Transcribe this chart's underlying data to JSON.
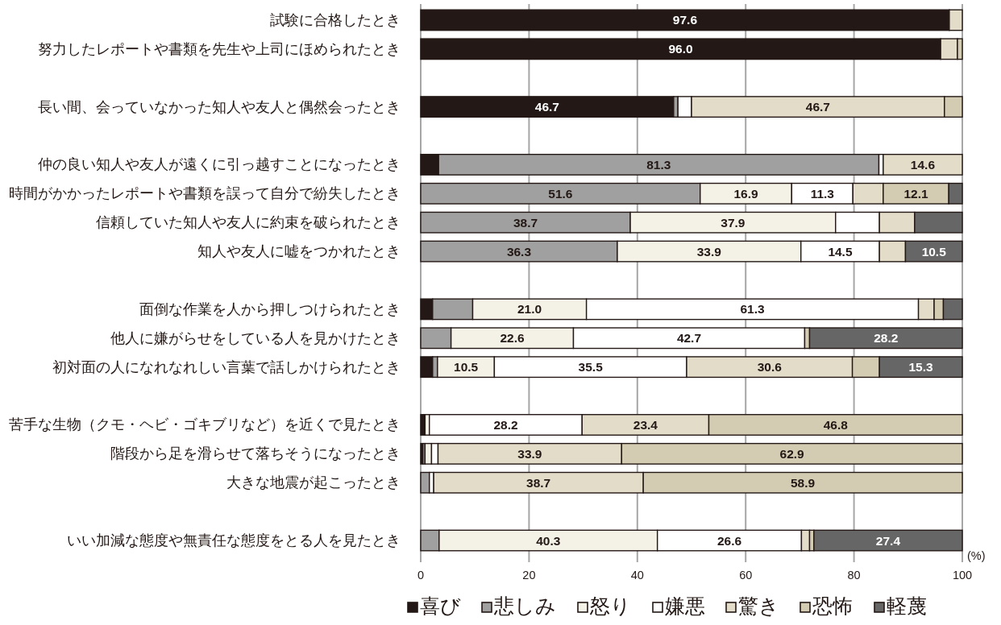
{
  "chart_data": {
    "type": "bar",
    "orientation": "horizontal",
    "stacked": true,
    "categories": [
      "試験に合格したとき",
      "努力したレポートや書類を先生や上司にほめられたとき",
      null,
      "長い間、会っていなかった知人や友人と偶然会ったとき",
      null,
      "仲の良い知人や友人が遠くに引っ越すことになったとき",
      "時間がかかったレポートや書類を誤って自分で紛失したとき",
      "信頼していた知人や友人に約束を破られたとき",
      "知人や友人に嘘をつかれたとき",
      null,
      "面倒な作業を人から押しつけられたとき",
      "他人に嫌がらせをしている人を見かけたとき",
      "初対面の人になれなれしい言葉で話しかけられたとき",
      null,
      "苦手な生物（クモ・ヘビ・ゴキブリなど）を近くで見たとき",
      "階段から足を滑らせて落ちそうになったとき",
      "大きな地震が起こったとき",
      null,
      "いい加減な態度や無責任な態度をとる人を見たとき"
    ],
    "series": [
      {
        "name": "喜び",
        "color": "#231815",
        "values": [
          97.6,
          96.0,
          null,
          46.7,
          null,
          3.3,
          null,
          null,
          null,
          null,
          2.2,
          null,
          2.2,
          null,
          0.8,
          0.4,
          null,
          null,
          null
        ],
        "value_labels": [
          "97.6",
          "96.0",
          null,
          "46.7",
          null,
          null,
          null,
          null,
          null,
          null,
          null,
          null,
          null,
          null,
          null,
          null,
          null,
          null,
          null
        ]
      },
      {
        "name": "悲しみ",
        "color": "#a0a0a0",
        "values": [
          null,
          null,
          null,
          0.8,
          null,
          81.3,
          51.6,
          38.7,
          36.3,
          null,
          7.4,
          5.6,
          0.9,
          null,
          null,
          0.4,
          1.6,
          null,
          3.4
        ],
        "value_labels": [
          null,
          null,
          null,
          null,
          null,
          "81.3",
          "51.6",
          "38.7",
          "36.3",
          null,
          null,
          null,
          null,
          null,
          null,
          null,
          null,
          null,
          null
        ]
      },
      {
        "name": "怒り",
        "color": "#f4f1e6",
        "values": [
          null,
          null,
          null,
          null,
          null,
          null,
          16.9,
          37.9,
          33.9,
          null,
          21.0,
          22.6,
          10.5,
          null,
          0.8,
          1.2,
          null,
          null,
          40.3
        ],
        "value_labels": [
          null,
          null,
          null,
          null,
          null,
          null,
          "16.9",
          "37.9",
          "33.9",
          null,
          "21.0",
          "22.6",
          "10.5",
          null,
          null,
          null,
          null,
          null,
          "40.3"
        ]
      },
      {
        "name": "嫌悪",
        "color": "#ffffff",
        "values": [
          null,
          null,
          null,
          2.5,
          null,
          0.8,
          11.3,
          8.1,
          14.5,
          null,
          61.3,
          42.7,
          35.5,
          null,
          28.2,
          1.2,
          0.8,
          null,
          26.6
        ],
        "value_labels": [
          null,
          null,
          null,
          null,
          null,
          null,
          "11.3",
          null,
          "14.5",
          null,
          "61.3",
          "42.7",
          "35.5",
          null,
          "28.2",
          null,
          null,
          null,
          "26.6"
        ]
      },
      {
        "name": "驚き",
        "color": "#e3dcc8",
        "values": [
          2.4,
          3.1,
          null,
          46.7,
          null,
          14.6,
          5.6,
          6.5,
          4.8,
          null,
          2.9,
          null,
          30.6,
          null,
          23.4,
          33.9,
          38.7,
          null,
          1.5
        ],
        "value_labels": [
          null,
          null,
          null,
          "46.7",
          null,
          "14.6",
          null,
          null,
          null,
          null,
          null,
          null,
          "30.6",
          null,
          "23.4",
          "33.9",
          "38.7",
          null,
          null
        ]
      },
      {
        "name": "恐怖",
        "color": "#d3ccb2",
        "values": [
          null,
          0.9,
          null,
          3.3,
          null,
          null,
          12.1,
          null,
          null,
          null,
          1.7,
          0.9,
          5.0,
          null,
          46.8,
          62.9,
          58.9,
          null,
          0.8
        ],
        "value_labels": [
          null,
          null,
          null,
          null,
          null,
          null,
          "12.1",
          null,
          null,
          null,
          null,
          null,
          null,
          null,
          "46.8",
          "62.9",
          "58.9",
          null,
          null
        ]
      },
      {
        "name": "軽蔑",
        "color": "#666666",
        "values": [
          null,
          null,
          null,
          null,
          null,
          null,
          2.5,
          8.8,
          10.5,
          null,
          3.5,
          28.2,
          15.3,
          null,
          null,
          null,
          null,
          null,
          27.4
        ],
        "value_labels": [
          null,
          null,
          null,
          null,
          null,
          null,
          null,
          null,
          "10.5",
          null,
          null,
          "28.2",
          "15.3",
          null,
          null,
          null,
          null,
          null,
          "27.4"
        ]
      }
    ],
    "xlim": [
      0,
      100
    ],
    "xticks": [
      0,
      20,
      40,
      60,
      80,
      100
    ],
    "xlabel": "(%)",
    "grid": "x",
    "legend": "bottom"
  }
}
